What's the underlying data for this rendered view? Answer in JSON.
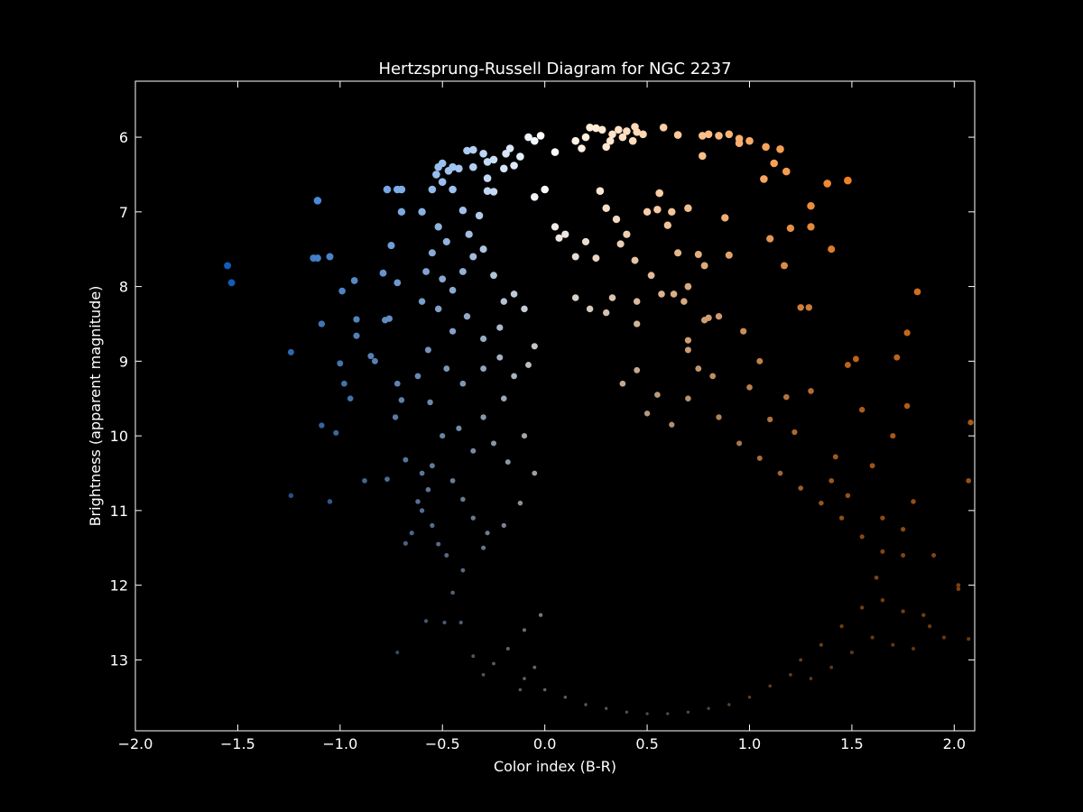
{
  "chart_data": {
    "type": "scatter",
    "title": "Hertzsprung-Russell Diagram for NGC 2237",
    "xlabel": "Color index (B-R)",
    "ylabel": "Brightness (apparent magnitude)",
    "xlim": [
      -2.0,
      2.1
    ],
    "ylim": [
      13.95,
      5.25
    ],
    "y_inverted": true,
    "grid": false,
    "legend": "none",
    "background": "#000000",
    "axes_color": "#ffffff",
    "x_ticks": [
      -2.0,
      -1.5,
      -1.0,
      -0.5,
      0.0,
      0.5,
      1.0,
      1.5,
      2.0
    ],
    "x_tick_labels": [
      "−2.0",
      "−1.5",
      "−1.0",
      "−0.5",
      "0.0",
      "0.5",
      "1.0",
      "1.5",
      "2.0"
    ],
    "y_ticks": [
      6,
      7,
      8,
      9,
      10,
      11,
      12,
      13
    ],
    "y_tick_labels": [
      "6",
      "7",
      "8",
      "9",
      "10",
      "11",
      "12",
      "13"
    ],
    "color_scale": {
      "blue": "#0a64d2",
      "light_blue": "#a8c8f0",
      "white": "#ffffff",
      "peach": "#ffd6b0",
      "orange": "#f08020"
    },
    "series": [
      {
        "points": [
          [
            -1.55,
            7.72
          ],
          [
            -1.53,
            7.95
          ],
          [
            -1.11,
            6.85
          ],
          [
            -1.13,
            7.62
          ],
          [
            -1.11,
            7.62
          ],
          [
            -1.05,
            7.6
          ],
          [
            -1.24,
            8.88
          ],
          [
            -1.09,
            8.5
          ],
          [
            -0.99,
            8.06
          ],
          [
            -0.93,
            7.92
          ],
          [
            -0.92,
            8.44
          ],
          [
            -0.92,
            8.66
          ],
          [
            -0.77,
            6.7
          ],
          [
            -0.72,
            6.7
          ],
          [
            -0.7,
            6.7
          ],
          [
            -0.7,
            7.0
          ],
          [
            -0.75,
            7.45
          ],
          [
            -0.79,
            7.82
          ],
          [
            -0.72,
            7.95
          ],
          [
            -0.78,
            8.45
          ],
          [
            -0.76,
            8.43
          ],
          [
            -1.0,
            9.03
          ],
          [
            -0.98,
            9.3
          ],
          [
            -0.95,
            9.5
          ],
          [
            -1.09,
            9.86
          ],
          [
            -1.02,
            9.96
          ],
          [
            -1.24,
            10.8
          ],
          [
            -1.05,
            10.88
          ],
          [
            -0.88,
            10.6
          ],
          [
            -0.77,
            10.58
          ],
          [
            -0.85,
            8.93
          ],
          [
            -0.83,
            9.0
          ],
          [
            -0.72,
            9.3
          ],
          [
            -0.7,
            9.52
          ],
          [
            -0.73,
            9.75
          ],
          [
            -0.68,
            10.32
          ],
          [
            -0.6,
            10.5
          ],
          [
            -0.55,
            10.4
          ],
          [
            -0.5,
            10.0
          ],
          [
            -0.56,
            9.55
          ],
          [
            -0.62,
            9.2
          ],
          [
            -0.57,
            8.85
          ],
          [
            -0.52,
            6.4
          ],
          [
            -0.5,
            6.35
          ],
          [
            -0.53,
            6.5
          ],
          [
            -0.45,
            6.4
          ],
          [
            -0.5,
            6.6
          ],
          [
            -0.42,
            6.42
          ],
          [
            -0.38,
            6.18
          ],
          [
            -0.35,
            6.17
          ],
          [
            -0.3,
            6.22
          ],
          [
            -0.28,
            6.33
          ],
          [
            -0.25,
            6.3
          ],
          [
            -0.19,
            6.22
          ],
          [
            -0.17,
            6.15
          ],
          [
            -0.15,
            6.38
          ],
          [
            -0.12,
            6.26
          ],
          [
            -0.2,
            6.42
          ],
          [
            -0.28,
            6.55
          ],
          [
            -0.28,
            6.72
          ],
          [
            -0.25,
            6.73
          ],
          [
            -0.35,
            6.4
          ],
          [
            -0.47,
            6.45
          ],
          [
            -0.45,
            6.7
          ],
          [
            -0.55,
            6.7
          ],
          [
            -0.6,
            7.0
          ],
          [
            -0.52,
            7.2
          ],
          [
            -0.48,
            7.4
          ],
          [
            -0.55,
            7.55
          ],
          [
            -0.58,
            7.8
          ],
          [
            -0.5,
            7.9
          ],
          [
            -0.45,
            8.05
          ],
          [
            -0.4,
            7.8
          ],
          [
            -0.35,
            7.6
          ],
          [
            -0.37,
            7.3
          ],
          [
            -0.32,
            7.05
          ],
          [
            -0.4,
            6.98
          ],
          [
            -0.3,
            7.5
          ],
          [
            -0.25,
            7.85
          ],
          [
            -0.2,
            8.2
          ],
          [
            -0.15,
            8.1
          ],
          [
            -0.1,
            8.3
          ],
          [
            -0.22,
            8.55
          ],
          [
            -0.3,
            8.7
          ],
          [
            -0.38,
            8.4
          ],
          [
            -0.45,
            8.6
          ],
          [
            -0.52,
            8.3
          ],
          [
            -0.6,
            8.2
          ],
          [
            -0.48,
            9.1
          ],
          [
            -0.4,
            9.3
          ],
          [
            -0.3,
            9.1
          ],
          [
            -0.22,
            8.95
          ],
          [
            -0.15,
            9.2
          ],
          [
            -0.08,
            9.05
          ],
          [
            -0.05,
            8.8
          ],
          [
            -0.2,
            9.5
          ],
          [
            -0.3,
            9.75
          ],
          [
            -0.42,
            9.9
          ],
          [
            -0.35,
            10.2
          ],
          [
            -0.25,
            10.1
          ],
          [
            -0.18,
            10.35
          ],
          [
            -0.1,
            10.0
          ],
          [
            -0.45,
            10.6
          ],
          [
            -0.4,
            10.85
          ],
          [
            -0.35,
            11.1
          ],
          [
            -0.28,
            11.3
          ],
          [
            -0.48,
            11.6
          ],
          [
            -0.4,
            11.8
          ],
          [
            -0.3,
            11.5
          ],
          [
            -0.2,
            11.2
          ],
          [
            -0.12,
            10.9
          ],
          [
            -0.05,
            10.5
          ],
          [
            -0.6,
            11.0
          ],
          [
            -0.55,
            11.2
          ],
          [
            -0.52,
            11.45
          ],
          [
            -0.65,
            11.3
          ],
          [
            -0.68,
            11.44
          ],
          [
            -0.62,
            10.88
          ],
          [
            -0.57,
            10.72
          ],
          [
            -0.45,
            12.1
          ],
          [
            -0.41,
            12.5
          ],
          [
            -0.49,
            12.5
          ],
          [
            -0.58,
            12.48
          ],
          [
            -0.72,
            12.9
          ],
          [
            -0.35,
            12.95
          ],
          [
            -0.3,
            13.2
          ],
          [
            -0.25,
            13.05
          ],
          [
            -0.18,
            12.85
          ],
          [
            -0.1,
            12.6
          ],
          [
            -0.02,
            12.4
          ],
          [
            -0.12,
            13.4
          ],
          [
            -0.05,
            13.1
          ],
          [
            -0.08,
            6.0
          ],
          [
            -0.05,
            6.05
          ],
          [
            -0.02,
            5.98
          ],
          [
            0.05,
            6.2
          ],
          [
            0.0,
            6.7
          ],
          [
            -0.05,
            6.8
          ],
          [
            0.15,
            6.05
          ],
          [
            0.2,
            6.0
          ],
          [
            0.22,
            5.87
          ],
          [
            0.25,
            5.88
          ],
          [
            0.28,
            5.9
          ],
          [
            0.33,
            5.96
          ],
          [
            0.36,
            5.9
          ],
          [
            0.4,
            5.92
          ],
          [
            0.44,
            5.86
          ],
          [
            0.45,
            5.93
          ],
          [
            0.48,
            5.96
          ],
          [
            0.43,
            6.05
          ],
          [
            0.38,
            6.0
          ],
          [
            0.32,
            6.05
          ],
          [
            0.3,
            6.13
          ],
          [
            0.18,
            6.15
          ],
          [
            0.58,
            5.87
          ],
          [
            0.65,
            5.97
          ],
          [
            0.77,
            5.98
          ],
          [
            0.8,
            5.96
          ],
          [
            0.85,
            5.98
          ],
          [
            0.9,
            5.96
          ],
          [
            0.95,
            6.02
          ],
          [
            0.95,
            6.08
          ],
          [
            1.0,
            6.05
          ],
          [
            1.08,
            6.13
          ],
          [
            1.15,
            6.16
          ],
          [
            1.12,
            6.35
          ],
          [
            1.18,
            6.46
          ],
          [
            1.07,
            6.56
          ],
          [
            0.77,
            6.25
          ],
          [
            1.38,
            6.62
          ],
          [
            1.48,
            6.58
          ],
          [
            1.3,
            6.92
          ],
          [
            1.4,
            7.5
          ],
          [
            1.3,
            7.2
          ],
          [
            1.2,
            7.22
          ],
          [
            1.1,
            7.36
          ],
          [
            1.17,
            7.72
          ],
          [
            1.82,
            8.07
          ],
          [
            1.25,
            8.28
          ],
          [
            1.29,
            8.28
          ],
          [
            1.77,
            8.62
          ],
          [
            1.72,
            8.95
          ],
          [
            1.52,
            8.97
          ],
          [
            1.48,
            9.05
          ],
          [
            1.77,
            9.6
          ],
          [
            1.55,
            9.65
          ],
          [
            0.27,
            6.72
          ],
          [
            0.3,
            6.95
          ],
          [
            0.35,
            7.1
          ],
          [
            0.4,
            7.3
          ],
          [
            0.5,
            7.0
          ],
          [
            0.56,
            6.75
          ],
          [
            0.55,
            6.97
          ],
          [
            0.62,
            7.0
          ],
          [
            0.7,
            6.95
          ],
          [
            0.6,
            7.18
          ],
          [
            0.88,
            7.08
          ],
          [
            0.75,
            7.57
          ],
          [
            0.78,
            7.72
          ],
          [
            0.9,
            7.58
          ],
          [
            0.65,
            7.55
          ],
          [
            0.52,
            7.85
          ],
          [
            0.44,
            7.65
          ],
          [
            0.37,
            7.43
          ],
          [
            0.2,
            7.4
          ],
          [
            0.15,
            7.6
          ],
          [
            0.25,
            7.62
          ],
          [
            0.07,
            7.35
          ],
          [
            0.1,
            7.3
          ],
          [
            0.05,
            7.2
          ],
          [
            0.15,
            8.15
          ],
          [
            0.22,
            8.3
          ],
          [
            0.33,
            8.15
          ],
          [
            0.3,
            8.35
          ],
          [
            0.45,
            8.2
          ],
          [
            0.45,
            8.5
          ],
          [
            0.57,
            8.1
          ],
          [
            0.63,
            8.1
          ],
          [
            0.7,
            8.0
          ],
          [
            0.68,
            8.2
          ],
          [
            0.8,
            8.42
          ],
          [
            0.85,
            8.4
          ],
          [
            0.78,
            8.45
          ],
          [
            0.97,
            8.6
          ],
          [
            0.7,
            8.72
          ],
          [
            0.7,
            8.85
          ],
          [
            0.82,
            9.2
          ],
          [
            0.75,
            9.1
          ],
          [
            1.05,
            9.0
          ],
          [
            1.0,
            9.35
          ],
          [
            1.18,
            9.48
          ],
          [
            1.1,
            9.78
          ],
          [
            1.22,
            9.95
          ],
          [
            1.3,
            9.4
          ],
          [
            0.55,
            9.45
          ],
          [
            0.45,
            9.12
          ],
          [
            0.38,
            9.3
          ],
          [
            0.5,
            9.7
          ],
          [
            0.62,
            9.85
          ],
          [
            0.7,
            9.5
          ],
          [
            0.85,
            9.75
          ],
          [
            0.95,
            10.1
          ],
          [
            1.05,
            10.3
          ],
          [
            1.15,
            10.5
          ],
          [
            1.25,
            10.7
          ],
          [
            1.35,
            10.9
          ],
          [
            1.45,
            11.1
          ],
          [
            1.55,
            11.35
          ],
          [
            1.6,
            10.4
          ],
          [
            1.42,
            10.28
          ],
          [
            1.4,
            10.6
          ],
          [
            1.48,
            10.8
          ],
          [
            1.65,
            11.1
          ],
          [
            1.75,
            11.25
          ],
          [
            1.8,
            10.88
          ],
          [
            1.7,
            10.0
          ],
          [
            1.65,
            11.55
          ],
          [
            1.75,
            11.6
          ],
          [
            1.9,
            11.6
          ],
          [
            1.85,
            12.4
          ],
          [
            1.95,
            12.7
          ],
          [
            2.02,
            12.0
          ],
          [
            2.02,
            12.05
          ],
          [
            2.07,
            10.6
          ],
          [
            2.07,
            12.72
          ],
          [
            2.08,
            9.82
          ],
          [
            1.62,
            11.9
          ],
          [
            1.55,
            12.3
          ],
          [
            1.45,
            12.55
          ],
          [
            1.35,
            12.8
          ],
          [
            1.25,
            13.0
          ],
          [
            1.2,
            13.2
          ],
          [
            1.1,
            13.35
          ],
          [
            1.0,
            13.5
          ],
          [
            0.9,
            13.6
          ],
          [
            0.8,
            13.65
          ],
          [
            0.7,
            13.7
          ],
          [
            0.6,
            13.72
          ],
          [
            0.5,
            13.72
          ],
          [
            0.4,
            13.7
          ],
          [
            0.3,
            13.65
          ],
          [
            0.2,
            13.6
          ],
          [
            0.1,
            13.5
          ],
          [
            0.0,
            13.4
          ],
          [
            -0.1,
            13.25
          ],
          [
            1.3,
            13.25
          ],
          [
            1.4,
            13.1
          ],
          [
            1.5,
            12.9
          ],
          [
            1.6,
            12.7
          ],
          [
            1.7,
            12.8
          ],
          [
            1.8,
            12.85
          ],
          [
            1.88,
            12.55
          ],
          [
            1.75,
            12.35
          ],
          [
            1.65,
            12.2
          ]
        ]
      }
    ]
  }
}
